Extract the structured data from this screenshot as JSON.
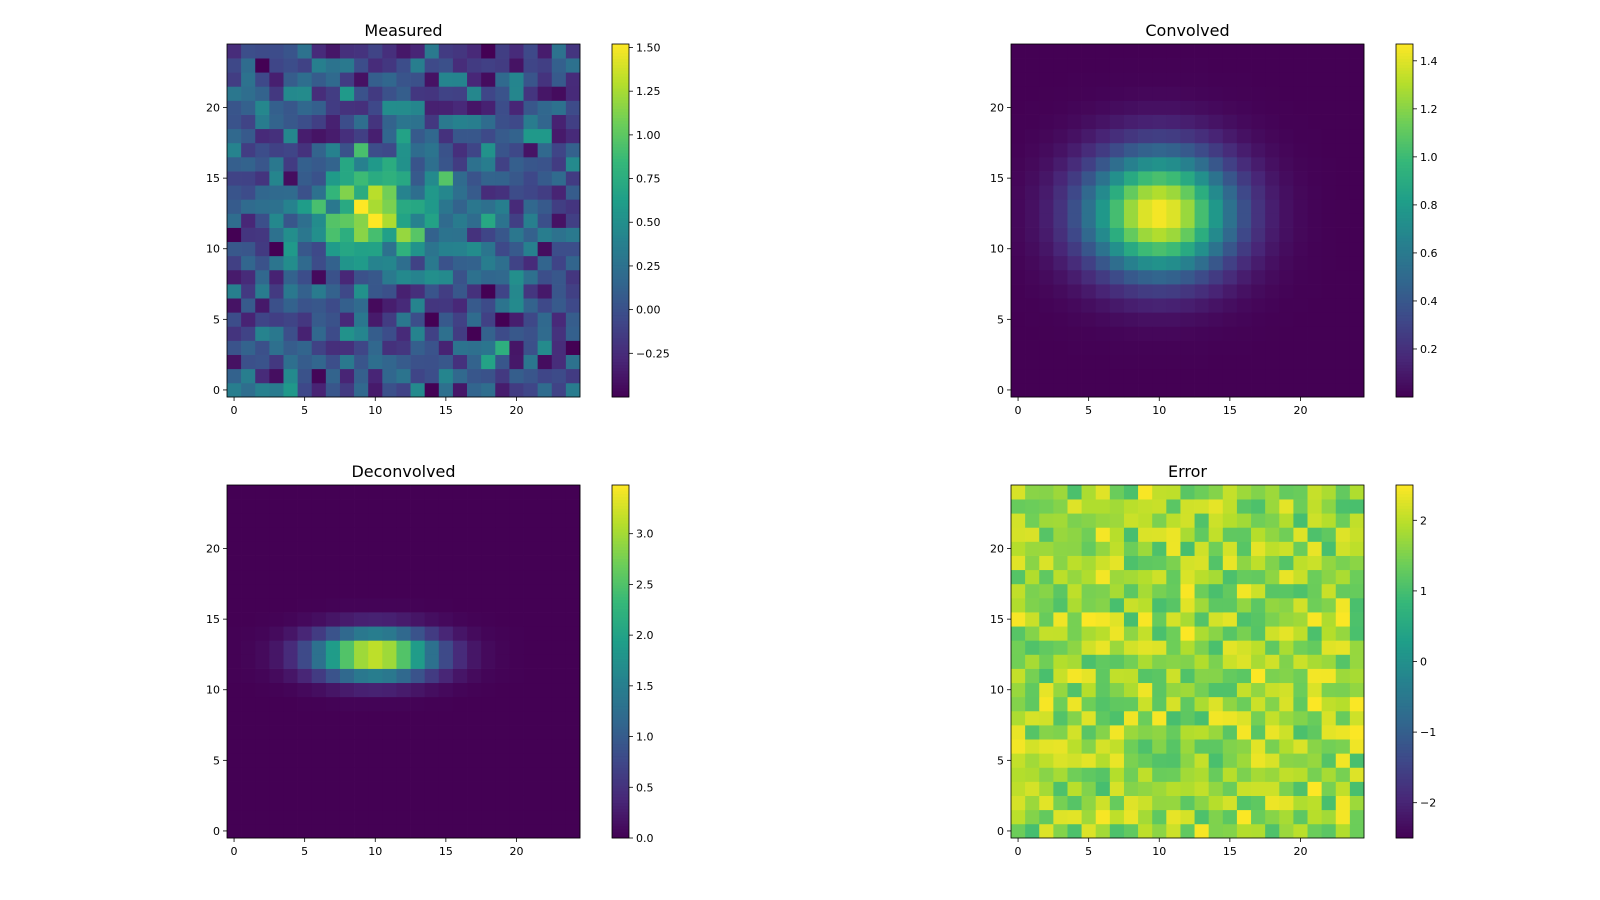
{
  "figure": {
    "background": "#ffffff",
    "colormap": "viridis",
    "colormap_stops": [
      "#440154",
      "#482878",
      "#3e4989",
      "#31688e",
      "#26828e",
      "#1f9e89",
      "#35b779",
      "#6ece58",
      "#b5de2b",
      "#fde725"
    ]
  },
  "chart_data": [
    {
      "type": "heatmap",
      "title": "Measured",
      "grid_size": 25,
      "xlim": [
        -0.5,
        24.5
      ],
      "ylim": [
        -0.5,
        24.5
      ],
      "xticks": [
        0,
        5,
        10,
        15,
        20
      ],
      "yticks": [
        0,
        5,
        10,
        15,
        20
      ],
      "xtick_labels": [
        "0",
        "5",
        "10",
        "15",
        "20"
      ],
      "ytick_labels": [
        "0",
        "5",
        "10",
        "15",
        "20"
      ],
      "vmin": -0.5,
      "vmax": 1.52,
      "colorbar_ticks": [
        -0.25,
        0.0,
        0.25,
        0.5,
        0.75,
        1.0,
        1.25,
        1.5
      ],
      "colorbar_labels": [
        "−0.25",
        "0.00",
        "0.25",
        "0.50",
        "0.75",
        "1.00",
        "1.25",
        "1.50"
      ],
      "generator": {
        "kind": "gaussian_noise",
        "center": [
          10,
          12.5
        ],
        "sigma": [
          3.2,
          2.2
        ],
        "amplitude": 1.3,
        "noise": 0.25,
        "seed": 7
      }
    },
    {
      "type": "heatmap",
      "title": "Convolved",
      "grid_size": 25,
      "xlim": [
        -0.5,
        24.5
      ],
      "ylim": [
        -0.5,
        24.5
      ],
      "xticks": [
        0,
        5,
        10,
        15,
        20
      ],
      "yticks": [
        0,
        5,
        10,
        15,
        20
      ],
      "xtick_labels": [
        "0",
        "5",
        "10",
        "15",
        "20"
      ],
      "ytick_labels": [
        "0",
        "5",
        "10",
        "15",
        "20"
      ],
      "vmin": 0.0,
      "vmax": 1.47,
      "colorbar_ticks": [
        0.2,
        0.4,
        0.6,
        0.8,
        1.0,
        1.2,
        1.4
      ],
      "colorbar_labels": [
        "0.2",
        "0.4",
        "0.6",
        "0.8",
        "1.0",
        "1.2",
        "1.4"
      ],
      "generator": {
        "kind": "gaussian",
        "center": [
          10,
          12.5
        ],
        "sigma": [
          3.6,
          3.0
        ],
        "amplitude": 1.47
      }
    },
    {
      "type": "heatmap",
      "title": "Deconvolved",
      "grid_size": 25,
      "xlim": [
        -0.5,
        24.5
      ],
      "ylim": [
        -0.5,
        24.5
      ],
      "xticks": [
        0,
        5,
        10,
        15,
        20
      ],
      "yticks": [
        0,
        5,
        10,
        15,
        20
      ],
      "xtick_labels": [
        "0",
        "5",
        "10",
        "15",
        "20"
      ],
      "ytick_labels": [
        "0",
        "5",
        "10",
        "15",
        "20"
      ],
      "vmin": 0.0,
      "vmax": 3.48,
      "colorbar_ticks": [
        0.0,
        0.5,
        1.0,
        1.5,
        2.0,
        2.5,
        3.0
      ],
      "colorbar_labels": [
        "0.0",
        "0.5",
        "1.0",
        "1.5",
        "2.0",
        "2.5",
        "3.0"
      ],
      "generator": {
        "kind": "gaussian",
        "center": [
          10,
          12.5
        ],
        "sigma": [
          3.0,
          1.15
        ],
        "amplitude": 3.45
      }
    },
    {
      "type": "heatmap",
      "title": "Error",
      "grid_size": 25,
      "xlim": [
        -0.5,
        24.5
      ],
      "ylim": [
        -0.5,
        24.5
      ],
      "xticks": [
        0,
        5,
        10,
        15,
        20
      ],
      "yticks": [
        0,
        5,
        10,
        15,
        20
      ],
      "xtick_labels": [
        "0",
        "5",
        "10",
        "15",
        "20"
      ],
      "ytick_labels": [
        "0",
        "5",
        "10",
        "15",
        "20"
      ],
      "vmin": -2.5,
      "vmax": 2.5,
      "colorbar_ticks": [
        -2,
        -1,
        0,
        1,
        2
      ],
      "colorbar_labels": [
        "−2",
        "−1",
        "0",
        "1",
        "2"
      ],
      "generator": {
        "kind": "uniform_noise",
        "low": 1.0,
        "high": 2.5,
        "seed": 19
      }
    }
  ]
}
